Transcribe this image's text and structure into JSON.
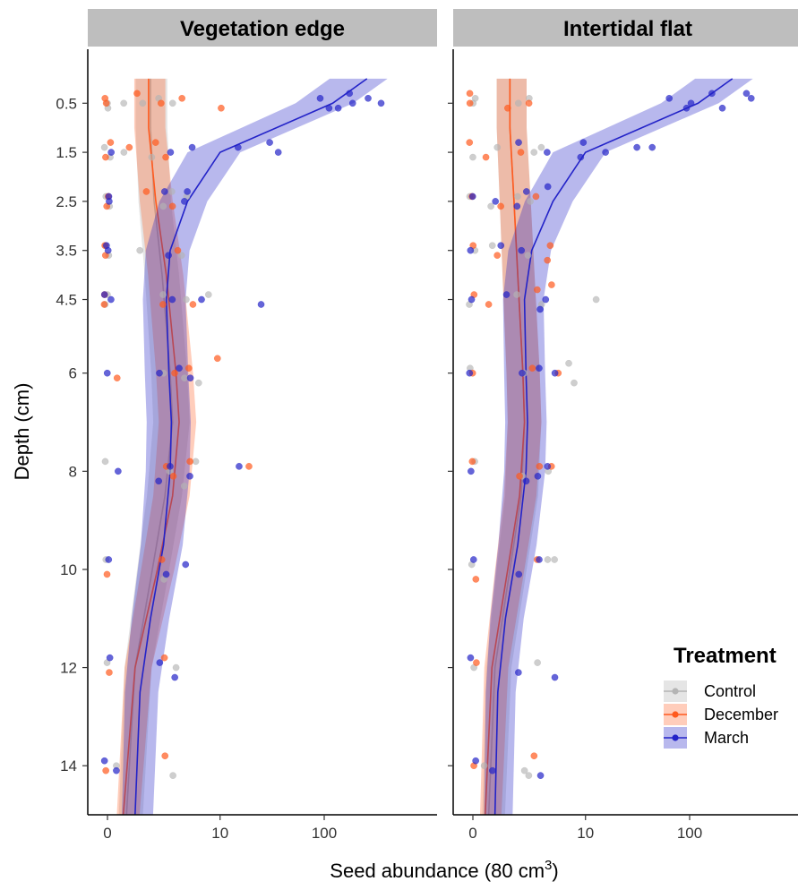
{
  "chart_data": {
    "type": "scatter",
    "panels": [
      "Vegetation edge",
      "Intertidal flat"
    ],
    "xlabel": "Seed abundance (80 cm",
    "xlabel_superscript": "3",
    "xlabel_suffix": ")",
    "ylabel": "Depth (cm)",
    "x_scale": "pseudo-log",
    "x_ticks": [
      0,
      10,
      100
    ],
    "x_tick_labels": [
      "0",
      "10",
      "100"
    ],
    "y_reversed": true,
    "ylim": [
      15,
      -0.6
    ],
    "y_ticks": [
      0.5,
      1.5,
      2.5,
      3.5,
      4.5,
      6,
      8,
      10,
      12,
      14
    ],
    "y_tick_labels": [
      "0.5",
      "1.5",
      "2.5",
      "3.5",
      "4.5",
      "6",
      "8",
      "10",
      "12",
      "14"
    ],
    "legend": {
      "title": "Treatment",
      "position": "right",
      "entries": [
        "Control",
        "December",
        "March"
      ]
    },
    "colors": {
      "Control": "#b4b4b4",
      "December": "#ff5a1e",
      "March": "#2323c8"
    },
    "trend_lines": {
      "Vegetation edge": {
        "Control": [
          [
            1.5,
            0
          ],
          [
            1.5,
            1
          ],
          [
            1.7,
            2.5
          ],
          [
            2.2,
            4
          ],
          [
            2.8,
            6
          ],
          [
            3.0,
            7
          ],
          [
            2.4,
            8.5
          ],
          [
            1.6,
            10
          ],
          [
            0.8,
            12
          ],
          [
            0.5,
            15
          ]
        ],
        "December": [
          [
            1.4,
            0
          ],
          [
            1.4,
            1
          ],
          [
            1.8,
            2.5
          ],
          [
            2.5,
            4
          ],
          [
            3.3,
            6
          ],
          [
            3.6,
            7
          ],
          [
            3.0,
            8.5
          ],
          [
            1.9,
            10
          ],
          [
            0.8,
            12
          ],
          [
            0.4,
            15
          ]
        ],
        "March": [
          [
            250,
            0
          ],
          [
            120,
            0.5
          ],
          [
            10,
            1.5
          ],
          [
            4.5,
            2.5
          ],
          [
            2.8,
            3.5
          ],
          [
            2.5,
            4.5
          ],
          [
            2.7,
            6
          ],
          [
            2.9,
            7
          ],
          [
            2.8,
            8
          ],
          [
            2.3,
            9.5
          ],
          [
            1.5,
            11
          ],
          [
            1.0,
            12.5
          ],
          [
            0.8,
            15
          ]
        ]
      },
      "Intertidal flat": {
        "Control": [
          [
            1.2,
            0
          ],
          [
            1.2,
            1
          ],
          [
            1.4,
            2.5
          ],
          [
            1.6,
            4
          ],
          [
            1.9,
            6
          ],
          [
            2.0,
            7
          ],
          [
            1.8,
            8.5
          ],
          [
            1.2,
            10
          ],
          [
            0.6,
            12
          ],
          [
            0.4,
            15
          ]
        ],
        "December": [
          [
            1.2,
            0
          ],
          [
            1.2,
            1
          ],
          [
            1.4,
            2.5
          ],
          [
            1.6,
            4
          ],
          [
            1.9,
            6
          ],
          [
            2.0,
            7
          ],
          [
            1.7,
            8.5
          ],
          [
            1.1,
            10
          ],
          [
            0.5,
            12
          ],
          [
            0.3,
            15
          ]
        ],
        "March": [
          [
            250,
            0
          ],
          [
            120,
            0.5
          ],
          [
            10,
            1.5
          ],
          [
            4.5,
            2.5
          ],
          [
            2.5,
            3.5
          ],
          [
            2.0,
            4.5
          ],
          [
            2.1,
            6
          ],
          [
            2.2,
            7
          ],
          [
            2.1,
            8
          ],
          [
            1.6,
            9.5
          ],
          [
            1.0,
            11
          ],
          [
            0.7,
            12.5
          ],
          [
            0.6,
            15
          ]
        ]
      }
    },
    "points": {
      "Vegetation edge": {
        "Control": [
          [
            0,
            0.5
          ],
          [
            0,
            0.6
          ],
          [
            0.5,
            0.5
          ],
          [
            1.2,
            0.5
          ],
          [
            2.0,
            0.4
          ],
          [
            3.0,
            0.5
          ],
          [
            0,
            1.4
          ],
          [
            0,
            1.6
          ],
          [
            0.4,
            1.5
          ],
          [
            1.6,
            1.6
          ],
          [
            0,
            2.4
          ],
          [
            0,
            2.6
          ],
          [
            2.2,
            2.6
          ],
          [
            3.2,
            2.3
          ],
          [
            4.4,
            2.4
          ],
          [
            0,
            3.4
          ],
          [
            0,
            3.6
          ],
          [
            1.1,
            3.5
          ],
          [
            3.8,
            3.6
          ],
          [
            0,
            4.4
          ],
          [
            0,
            4.6
          ],
          [
            2.5,
            4.4
          ],
          [
            4.0,
            4.5
          ],
          [
            7.0,
            4.4
          ],
          [
            2.5,
            6.0
          ],
          [
            4.2,
            6.1
          ],
          [
            5.5,
            6.2
          ],
          [
            0,
            7.8
          ],
          [
            2.8,
            8.0
          ],
          [
            5.5,
            7.8
          ],
          [
            4.0,
            8.3
          ],
          [
            0,
            9.8
          ],
          [
            2.5,
            10.2
          ],
          [
            3.0,
            12.0
          ],
          [
            0,
            11.9
          ],
          [
            3.2,
            14.2
          ],
          [
            0.2,
            14.0
          ]
        ],
        "December": [
          [
            0,
            0.5
          ],
          [
            0,
            0.4
          ],
          [
            0.8,
            0.3
          ],
          [
            2.2,
            0.5
          ],
          [
            4.0,
            0.4
          ],
          [
            11.0,
            0.6
          ],
          [
            0,
            1.3
          ],
          [
            0,
            1.6
          ],
          [
            0.5,
            1.4
          ],
          [
            1.8,
            1.3
          ],
          [
            2.6,
            1.6
          ],
          [
            0,
            2.4
          ],
          [
            0,
            2.6
          ],
          [
            1.2,
            2.3
          ],
          [
            2.9,
            2.6
          ],
          [
            0,
            3.4
          ],
          [
            0,
            3.6
          ],
          [
            3.5,
            3.5
          ],
          [
            0,
            4.4
          ],
          [
            0,
            4.6
          ],
          [
            2.3,
            4.6
          ],
          [
            5.0,
            4.6
          ],
          [
            0.2,
            6.1
          ],
          [
            2.9,
            6.0
          ],
          [
            4.8,
            5.9
          ],
          [
            9.5,
            5.7
          ],
          [
            2.5,
            7.9
          ],
          [
            3.1,
            8.1
          ],
          [
            4.5,
            7.8
          ],
          [
            19.5,
            7.9
          ],
          [
            0,
            10.1
          ],
          [
            2.3,
            9.8
          ],
          [
            2.5,
            11.8
          ],
          [
            0,
            12.1
          ],
          [
            2.6,
            13.8
          ],
          [
            0,
            14.1
          ]
        ],
        "March": [
          [
            88,
            0.4
          ],
          [
            105,
            0.6
          ],
          [
            160,
            0.3
          ],
          [
            240,
            0.4
          ],
          [
            320,
            0.5
          ],
          [
            130,
            0.6
          ],
          [
            180,
            0.5
          ],
          [
            15,
            1.4
          ],
          [
            33,
            1.3
          ],
          [
            38,
            1.5
          ],
          [
            5.2,
            1.4
          ],
          [
            3.0,
            1.5
          ],
          [
            0.1,
            1.5
          ],
          [
            0,
            2.4
          ],
          [
            0,
            2.5
          ],
          [
            2.5,
            2.3
          ],
          [
            3.8,
            2.5
          ],
          [
            4.9,
            2.3
          ],
          [
            0,
            3.4
          ],
          [
            0,
            3.5
          ],
          [
            2.7,
            3.6
          ],
          [
            0,
            4.4
          ],
          [
            0,
            4.5
          ],
          [
            3.0,
            4.5
          ],
          [
            6.0,
            4.5
          ],
          [
            25,
            4.6
          ],
          [
            0,
            6.0
          ],
          [
            2.2,
            6.0
          ],
          [
            3.4,
            5.9
          ],
          [
            4.5,
            6.1
          ],
          [
            0.3,
            8.0
          ],
          [
            2.2,
            8.2
          ],
          [
            3.0,
            7.9
          ],
          [
            4.6,
            8.1
          ],
          [
            15,
            7.9
          ],
          [
            0,
            9.8
          ],
          [
            2.3,
            10.1
          ],
          [
            4.5,
            9.9
          ],
          [
            0,
            11.8
          ],
          [
            2.2,
            11.9
          ],
          [
            3.5,
            12.2
          ],
          [
            0,
            13.9
          ],
          [
            0.3,
            14.1
          ]
        ]
      },
      "Intertidal flat": {
        "Control": [
          [
            0,
            0.5
          ],
          [
            0,
            0.4
          ],
          [
            1.5,
            0.5
          ],
          [
            2.5,
            0.4
          ],
          [
            0,
            1.6
          ],
          [
            0.8,
            1.4
          ],
          [
            2.8,
            1.5
          ],
          [
            3.3,
            1.4
          ],
          [
            0,
            2.4
          ],
          [
            0.5,
            2.6
          ],
          [
            1.7,
            2.4
          ],
          [
            2.5,
            2.5
          ],
          [
            0,
            3.5
          ],
          [
            0.6,
            3.4
          ],
          [
            2.4,
            3.6
          ],
          [
            0,
            4.6
          ],
          [
            1.5,
            4.4
          ],
          [
            3.6,
            4.6
          ],
          [
            13.0,
            4.5
          ],
          [
            0,
            5.9
          ],
          [
            2.0,
            6.0
          ],
          [
            6.8,
            5.8
          ],
          [
            8.3,
            6.2
          ],
          [
            0,
            7.8
          ],
          [
            1.9,
            8.1
          ],
          [
            3.8,
            8.0
          ],
          [
            0,
            9.9
          ],
          [
            3.6,
            9.8
          ],
          [
            4.5,
            9.8
          ],
          [
            0,
            12.0
          ],
          [
            3.1,
            11.9
          ],
          [
            0.3,
            14.0
          ],
          [
            2.2,
            14.1
          ],
          [
            2.1,
            14.2
          ]
        ],
        "December": [
          [
            0,
            0.5
          ],
          [
            0,
            0.3
          ],
          [
            1.2,
            0.6
          ],
          [
            2.4,
            0.5
          ],
          [
            0,
            1.3
          ],
          [
            0.3,
            1.6
          ],
          [
            1.8,
            1.5
          ],
          [
            0,
            2.4
          ],
          [
            0.8,
            2.6
          ],
          [
            2.6,
            2.4
          ],
          [
            0,
            3.4
          ],
          [
            0.7,
            3.6
          ],
          [
            4.5,
            3.4
          ],
          [
            3.6,
            3.7
          ],
          [
            0,
            4.4
          ],
          [
            0.4,
            4.6
          ],
          [
            2.7,
            4.3
          ],
          [
            4.2,
            4.2
          ],
          [
            0,
            6.0
          ],
          [
            2.3,
            5.9
          ],
          [
            4.8,
            6.0
          ],
          [
            0,
            7.8
          ],
          [
            1.7,
            8.1
          ],
          [
            3.0,
            7.9
          ],
          [
            4.1,
            7.9
          ],
          [
            0,
            10.2
          ],
          [
            2.9,
            9.8
          ],
          [
            0,
            11.9
          ],
          [
            0,
            14.0
          ],
          [
            2.5,
            13.8
          ]
        ],
        "March": [
          [
            65,
            0.4
          ],
          [
            110,
            0.5
          ],
          [
            150,
            0.3
          ],
          [
            200,
            0.6
          ],
          [
            330,
            0.3
          ],
          [
            380,
            0.4
          ],
          [
            90,
            0.6
          ],
          [
            8.5,
            1.6
          ],
          [
            9.5,
            1.3
          ],
          [
            16,
            1.5
          ],
          [
            30,
            1.4
          ],
          [
            43,
            1.4
          ],
          [
            4.2,
            1.5
          ],
          [
            1.7,
            1.3
          ],
          [
            0,
            2.4
          ],
          [
            0.5,
            2.5
          ],
          [
            1.5,
            2.6
          ],
          [
            2.3,
            2.3
          ],
          [
            3.8,
            2.2
          ],
          [
            0,
            3.5
          ],
          [
            0.9,
            3.4
          ],
          [
            1.8,
            3.5
          ],
          [
            0,
            4.5
          ],
          [
            1.2,
            4.4
          ],
          [
            2.9,
            4.7
          ],
          [
            3.7,
            4.5
          ],
          [
            0,
            6.0
          ],
          [
            1.9,
            6.0
          ],
          [
            3.3,
            5.9
          ],
          [
            4.6,
            6.0
          ],
          [
            0,
            8.0
          ],
          [
            2.0,
            8.2
          ],
          [
            3.1,
            8.1
          ],
          [
            3.6,
            7.9
          ],
          [
            0,
            9.8
          ],
          [
            1.7,
            10.1
          ],
          [
            2.9,
            9.8
          ],
          [
            0,
            11.8
          ],
          [
            1.7,
            12.1
          ],
          [
            4.8,
            12.2
          ],
          [
            0,
            13.9
          ],
          [
            0.5,
            14.1
          ],
          [
            3.5,
            14.2
          ]
        ]
      }
    }
  }
}
